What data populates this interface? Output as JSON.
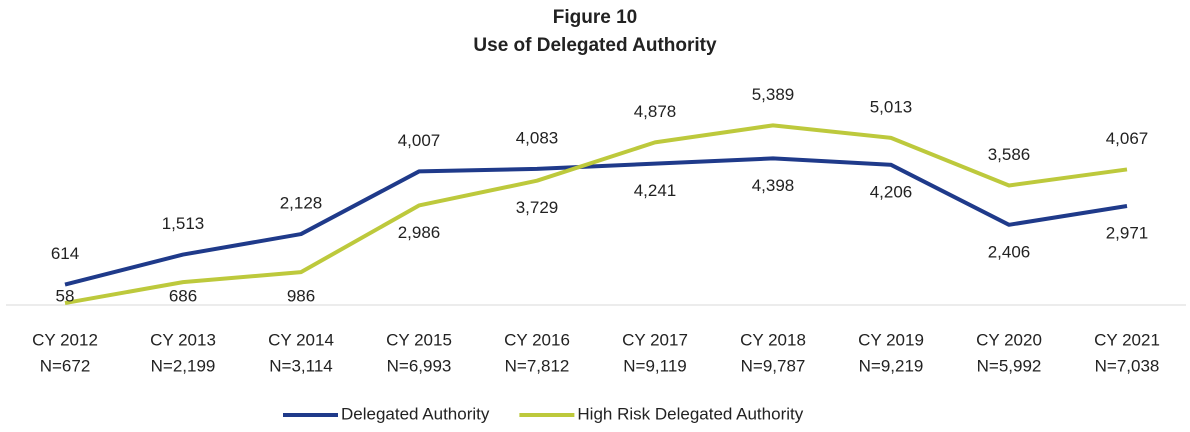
{
  "chart_data": {
    "type": "line",
    "title": "Figure 10",
    "subtitle": "Use of Delegated Authority",
    "categories": [
      "CY 2012",
      "CY 2013",
      "CY 2014",
      "CY 2015",
      "CY 2016",
      "CY 2017",
      "CY 2018",
      "CY 2019",
      "CY 2020",
      "CY 2021"
    ],
    "category_counts": [
      "N=672",
      "N=2,199",
      "N=3,114",
      "N=6,993",
      "N=7,812",
      "N=9,119",
      "N=9,787",
      "N=9,219",
      "N=5,992",
      "N=7,038"
    ],
    "ylim": [
      0,
      6000
    ],
    "legend": "bottom",
    "series": [
      {
        "name": "Delegated Authority",
        "color": "#1f3a8a",
        "values": [
          614,
          1513,
          2128,
          4007,
          4083,
          4241,
          4398,
          4206,
          2406,
          2971
        ],
        "value_labels": [
          "614",
          "1,513",
          "2,128",
          "4,007",
          "4,083",
          "4,241",
          "4,398",
          "4,206",
          "2,406",
          "2,971"
        ]
      },
      {
        "name": "High Risk Delegated Authority",
        "color": "#bdc93c",
        "values": [
          58,
          686,
          986,
          2986,
          3729,
          4878,
          5389,
          5013,
          3586,
          4067
        ],
        "value_labels": [
          "58",
          "686",
          "986",
          "2,986",
          "3,729",
          "4,878",
          "5,389",
          "5,013",
          "3,586",
          "4,067"
        ]
      }
    ]
  }
}
